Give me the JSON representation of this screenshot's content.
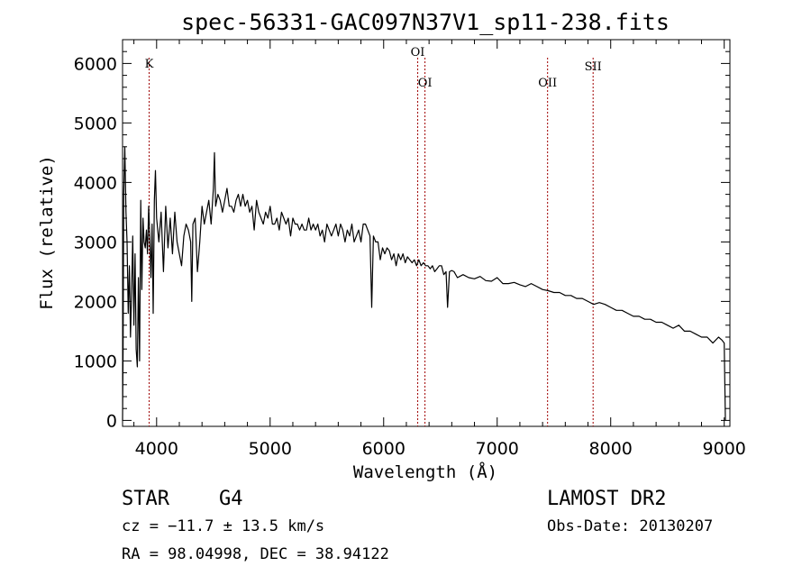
{
  "chart_data": {
    "type": "line",
    "title": "spec-56331-GAC097N37V1_sp11-238.fits",
    "xlabel": "Wavelength (Å)",
    "ylabel": "Flux (relative)",
    "xlim": [
      3700,
      9050
    ],
    "ylim": [
      -100,
      6400
    ],
    "x_ticks": [
      4000,
      5000,
      6000,
      7000,
      8000,
      9000
    ],
    "y_ticks": [
      0,
      1000,
      2000,
      3000,
      4000,
      5000,
      6000
    ],
    "grid": false,
    "spectral_lines": [
      {
        "name": "K",
        "wavelength": 3934
      },
      {
        "name": "OI",
        "wavelength": 6300
      },
      {
        "name": "OI",
        "wavelength": 6364
      },
      {
        "name": "OII",
        "wavelength": 7444
      },
      {
        "name": "SII",
        "wavelength": 7845
      }
    ],
    "series": [
      {
        "x": [
          3700,
          3705,
          3710,
          3720,
          3730,
          3740,
          3750,
          3760,
          3770,
          3780,
          3790,
          3800,
          3810,
          3820,
          3830,
          3840,
          3850,
          3860,
          3870,
          3880,
          3890,
          3900,
          3910,
          3920,
          3930,
          3940,
          3950,
          3960,
          3970,
          3980,
          3990,
          4000,
          4020,
          4040,
          4060,
          4080,
          4100,
          4120,
          4140,
          4160,
          4180,
          4200,
          4220,
          4240,
          4260,
          4280,
          4300,
          4310,
          4320,
          4340,
          4360,
          4380,
          4400,
          4420,
          4440,
          4460,
          4480,
          4500,
          4510,
          4520,
          4540,
          4560,
          4580,
          4600,
          4620,
          4640,
          4660,
          4680,
          4700,
          4720,
          4740,
          4760,
          4780,
          4800,
          4820,
          4840,
          4860,
          4880,
          4900,
          4920,
          4940,
          4960,
          4980,
          5000,
          5020,
          5040,
          5060,
          5080,
          5100,
          5120,
          5140,
          5160,
          5180,
          5200,
          5220,
          5240,
          5260,
          5280,
          5300,
          5320,
          5340,
          5360,
          5380,
          5400,
          5420,
          5440,
          5460,
          5480,
          5500,
          5520,
          5540,
          5560,
          5580,
          5600,
          5620,
          5640,
          5660,
          5680,
          5700,
          5720,
          5740,
          5760,
          5780,
          5800,
          5820,
          5840,
          5860,
          5880,
          5895,
          5910,
          5930,
          5950,
          5970,
          5990,
          6010,
          6030,
          6050,
          6070,
          6090,
          6110,
          6130,
          6150,
          6170,
          6190,
          6210,
          6230,
          6250,
          6270,
          6290,
          6310,
          6330,
          6350,
          6370,
          6390,
          6410,
          6430,
          6450,
          6470,
          6490,
          6510,
          6530,
          6550,
          6563,
          6580,
          6600,
          6620,
          6650,
          6700,
          6750,
          6800,
          6850,
          6900,
          6950,
          7000,
          7050,
          7100,
          7150,
          7200,
          7250,
          7300,
          7350,
          7400,
          7450,
          7500,
          7550,
          7600,
          7650,
          7700,
          7750,
          7800,
          7850,
          7900,
          7950,
          8000,
          8050,
          8100,
          8150,
          8200,
          8250,
          8300,
          8350,
          8400,
          8450,
          8500,
          8550,
          8600,
          8650,
          8700,
          8750,
          8800,
          8850,
          8900,
          8950,
          8980,
          9000,
          9010
        ],
        "values": [
          0,
          1200,
          3800,
          4600,
          3500,
          3000,
          1800,
          2600,
          1400,
          2200,
          3100,
          1600,
          2800,
          1200,
          900,
          2400,
          1000,
          3700,
          2200,
          3400,
          3000,
          2900,
          3200,
          2800,
          3600,
          3100,
          2400,
          3300,
          1800,
          3700,
          4200,
          3400,
          3000,
          3500,
          2500,
          3600,
          2900,
          3400,
          2800,
          3500,
          3000,
          2800,
          2600,
          3100,
          3300,
          3200,
          3000,
          2000,
          3300,
          3400,
          2500,
          3000,
          3600,
          3300,
          3500,
          3700,
          3300,
          3900,
          4500,
          3600,
          3800,
          3700,
          3500,
          3700,
          3900,
          3600,
          3600,
          3500,
          3700,
          3800,
          3600,
          3800,
          3600,
          3700,
          3500,
          3600,
          3200,
          3700,
          3500,
          3400,
          3300,
          3500,
          3400,
          3600,
          3300,
          3300,
          3400,
          3200,
          3500,
          3400,
          3300,
          3400,
          3100,
          3400,
          3300,
          3300,
          3200,
          3300,
          3200,
          3200,
          3400,
          3200,
          3300,
          3200,
          3300,
          3100,
          3200,
          3000,
          3300,
          3200,
          3100,
          3200,
          3300,
          3100,
          3300,
          3200,
          3000,
          3200,
          3100,
          3300,
          3000,
          3100,
          3200,
          3000,
          3300,
          3300,
          3200,
          3100,
          1900,
          3100,
          3000,
          3000,
          2700,
          2900,
          2800,
          2900,
          2850,
          2700,
          2800,
          2600,
          2800,
          2700,
          2800,
          2650,
          2750,
          2700,
          2650,
          2700,
          2600,
          2700,
          2600,
          2650,
          2600,
          2600,
          2550,
          2600,
          2500,
          2550,
          2600,
          2600,
          2450,
          2500,
          1900,
          2500,
          2520,
          2500,
          2400,
          2450,
          2400,
          2380,
          2420,
          2350,
          2340,
          2400,
          2300,
          2300,
          2320,
          2280,
          2250,
          2300,
          2250,
          2200,
          2180,
          2150,
          2150,
          2100,
          2100,
          2050,
          2050,
          2000,
          1950,
          1980,
          1950,
          1900,
          1850,
          1850,
          1800,
          1750,
          1750,
          1700,
          1700,
          1650,
          1650,
          1600,
          1550,
          1600,
          1500,
          1500,
          1450,
          1400,
          1400,
          1300,
          1400,
          1350,
          1300,
          0
        ]
      }
    ]
  },
  "info": {
    "object_class": "STAR",
    "subclass": "G4",
    "cz": "cz = −11.7 ± 13.5 km/s",
    "radec": "RA =  98.04998, DEC =  38.94122",
    "survey": "LAMOST DR2",
    "obs_date": "Obs-Date: 20130207"
  }
}
